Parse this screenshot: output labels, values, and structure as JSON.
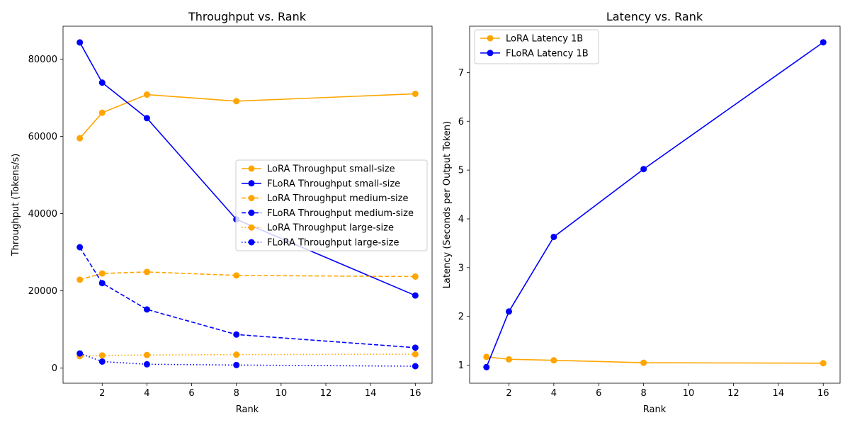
{
  "chart_data": [
    {
      "type": "line",
      "title": "Throughput vs. Rank",
      "xlabel": "Rank",
      "ylabel": "Throughput (Tokens/s)",
      "xlim": [
        0.25,
        16.75
      ],
      "ylim": [
        -3900,
        88500
      ],
      "xticks": [
        2,
        4,
        6,
        8,
        10,
        12,
        14,
        16
      ],
      "yticks": [
        0,
        20000,
        40000,
        60000,
        80000
      ],
      "legend_position": "center-right",
      "grid": false,
      "x": [
        1,
        2,
        4,
        8,
        16
      ],
      "series": [
        {
          "name": "LoRA Throughput small-size",
          "color": "#FFA500",
          "linestyle": "solid",
          "values": [
            59500,
            66100,
            70800,
            69100,
            71000
          ]
        },
        {
          "name": "FLoRA Throughput small-size",
          "color": "#0000FF",
          "linestyle": "solid",
          "values": [
            84300,
            73900,
            64700,
            38500,
            18800
          ]
        },
        {
          "name": "LoRA Throughput medium-size",
          "color": "#FFA500",
          "linestyle": "dashed",
          "values": [
            22900,
            24500,
            24900,
            24000,
            23700
          ]
        },
        {
          "name": "FLoRA Throughput medium-size",
          "color": "#0000FF",
          "linestyle": "dashed",
          "values": [
            31300,
            22000,
            15200,
            8700,
            5300
          ]
        },
        {
          "name": "LoRA Throughput large-size",
          "color": "#FFA500",
          "linestyle": "dotted",
          "values": [
            3100,
            3300,
            3400,
            3500,
            3600
          ]
        },
        {
          "name": "FLoRA Throughput large-size",
          "color": "#0000FF",
          "linestyle": "dotted",
          "values": [
            3800,
            1700,
            1000,
            800,
            500
          ]
        }
      ]
    },
    {
      "type": "line",
      "title": "Latency vs. Rank",
      "xlabel": "Rank",
      "ylabel": "Latency (Seconds per Output Token)",
      "xlim": [
        0.25,
        16.75
      ],
      "ylim": [
        0.63,
        7.95
      ],
      "xticks": [
        2,
        4,
        6,
        8,
        10,
        12,
        14,
        16
      ],
      "yticks": [
        1,
        2,
        3,
        4,
        5,
        6,
        7
      ],
      "legend_position": "upper-left",
      "grid": false,
      "x": [
        1,
        2,
        4,
        8,
        16
      ],
      "series": [
        {
          "name": "LoRA Latency 1B",
          "color": "#FFA500",
          "linestyle": "solid",
          "values": [
            1.17,
            1.12,
            1.1,
            1.05,
            1.04
          ]
        },
        {
          "name": "FLoRA Latency 1B",
          "color": "#0000FF",
          "linestyle": "solid",
          "values": [
            0.96,
            2.1,
            3.63,
            5.02,
            7.62
          ]
        }
      ]
    }
  ]
}
